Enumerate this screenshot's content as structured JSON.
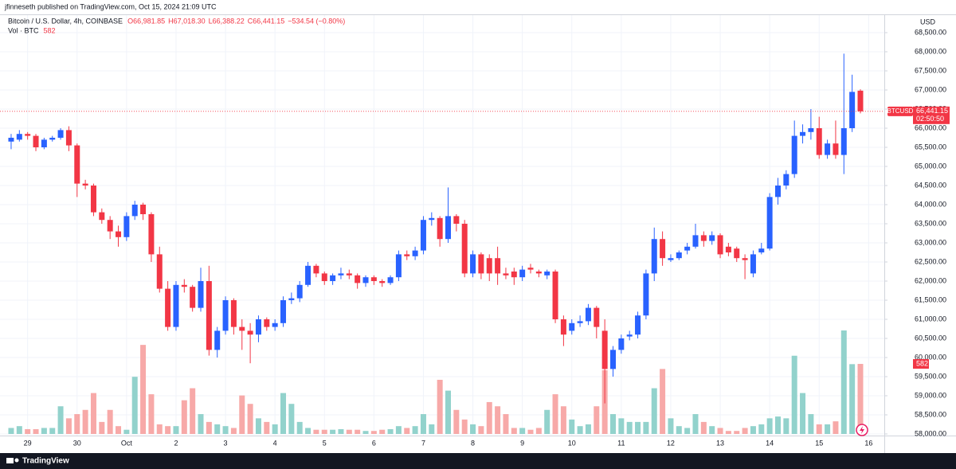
{
  "header": {
    "publisher": "jfinneseth published on TradingView.com, Oct 15, 2024 21:09 UTC"
  },
  "legend": {
    "symbol": "Bitcoin / U.S. Dollar, 4h, COINBASE",
    "open": "O66,981.85",
    "high": "H67,018.30",
    "low": "L66,388.22",
    "close": "C66,441.15",
    "change": "−534.54 (−0.80%)",
    "volume_name": "Vol · BTC",
    "volume": "582"
  },
  "footer": {
    "brand": "TradingView"
  },
  "chart_data": {
    "type": "candlestick",
    "currency": "USD",
    "symbol": "BTCUSD",
    "last_price": {
      "value": 66441.15,
      "label": "66,441.15"
    },
    "countdown": "02:50:50",
    "last_volume_label": "582",
    "up_color": "#2962ff",
    "down_color": "#f23645",
    "volume_up_color": "#92d2cc",
    "volume_down_color": "#f7a9a8",
    "ylim": [
      58000,
      68500
    ],
    "yticks": [
      {
        "value": 58000,
        "label": "58,000.00"
      },
      {
        "value": 58500,
        "label": "58,500.00"
      },
      {
        "value": 59000,
        "label": "59,000.00"
      },
      {
        "value": 59500,
        "label": "59,500.00"
      },
      {
        "value": 60000,
        "label": "60,000.00"
      },
      {
        "value": 60500,
        "label": "60,500.00"
      },
      {
        "value": 61000,
        "label": "61,000.00"
      },
      {
        "value": 61500,
        "label": "61,500.00"
      },
      {
        "value": 62000,
        "label": "62,000.00"
      },
      {
        "value": 62500,
        "label": "62,500.00"
      },
      {
        "value": 63000,
        "label": "63,000.00"
      },
      {
        "value": 63500,
        "label": "63,500.00"
      },
      {
        "value": 64000,
        "label": "64,000.00"
      },
      {
        "value": 64500,
        "label": "64,500.00"
      },
      {
        "value": 65000,
        "label": "65,000.00"
      },
      {
        "value": 65500,
        "label": "65,500.00"
      },
      {
        "value": 66000,
        "label": "66,000.00"
      },
      {
        "value": 66500,
        "label": "66,500.00"
      },
      {
        "value": 67000,
        "label": "67,000.00"
      },
      {
        "value": 67500,
        "label": "67,500.00"
      },
      {
        "value": 68000,
        "label": "68,000.00"
      },
      {
        "value": 68500,
        "label": "68,500.00"
      }
    ],
    "xlim": [
      -1.35,
      105.9
    ],
    "xticks": [
      {
        "value": 2,
        "label": "29"
      },
      {
        "value": 8,
        "label": "30"
      },
      {
        "value": 14,
        "label": "Oct"
      },
      {
        "value": 20,
        "label": "2"
      },
      {
        "value": 26,
        "label": "3"
      },
      {
        "value": 32,
        "label": "4"
      },
      {
        "value": 38,
        "label": "5"
      },
      {
        "value": 44,
        "label": "6"
      },
      {
        "value": 50,
        "label": "7"
      },
      {
        "value": 56,
        "label": "8"
      },
      {
        "value": 62,
        "label": "9"
      },
      {
        "value": 68,
        "label": "10"
      },
      {
        "value": 74,
        "label": "11"
      },
      {
        "value": 80,
        "label": "12"
      },
      {
        "value": 86,
        "label": "13"
      },
      {
        "value": 92,
        "label": "14"
      },
      {
        "value": 98,
        "label": "15"
      },
      {
        "value": 104,
        "label": "16"
      }
    ],
    "grid": true,
    "open": [
      65650,
      65700,
      65850,
      65800,
      65500,
      65700,
      65750,
      65950,
      65550,
      64550,
      64500,
      63800,
      63600,
      63300,
      63150,
      63700,
      64000,
      63750,
      62700,
      61800,
      60800,
      61900,
      61850,
      61300,
      62000,
      60200,
      60700,
      61500,
      60800,
      60700,
      60600,
      61000,
      60800,
      60900,
      61500,
      61550,
      61900,
      62400,
      62200,
      62000,
      62150,
      62200,
      62150,
      61950,
      62100,
      62000,
      61950,
      62100,
      62700,
      62650,
      62800,
      63600,
      63650,
      63100,
      63700,
      63500,
      62200,
      62700,
      62600,
      62600,
      62200,
      62250,
      62100,
      62350,
      62250,
      62150,
      62250,
      61000,
      60700,
      60900,
      60950,
      61300,
      60700,
      59700,
      60200,
      60550,
      60600,
      61100,
      62200,
      63100,
      62550,
      62600,
      62800,
      62900,
      63200,
      63050,
      63200,
      62900,
      62850,
      62600,
      62200,
      62750,
      62850,
      64200,
      64500,
      64800,
      65800,
      65900,
      66000,
      65300,
      65600,
      65300,
      66000,
      66981.85
    ],
    "high": [
      65850,
      65950,
      65900,
      65850,
      65750,
      65800,
      66000,
      66050,
      65600,
      64650,
      64550,
      63900,
      63700,
      63450,
      63800,
      64100,
      64050,
      63800,
      62900,
      62000,
      62000,
      62050,
      61900,
      62350,
      62400,
      60800,
      61600,
      61550,
      61000,
      60900,
      61100,
      61050,
      61000,
      61600,
      61700,
      62000,
      62500,
      62450,
      62250,
      62200,
      62350,
      62300,
      62200,
      62150,
      62150,
      62050,
      62150,
      62800,
      62800,
      62900,
      63700,
      63800,
      63700,
      64450,
      63750,
      63600,
      62800,
      62750,
      62700,
      62900,
      62350,
      62350,
      62400,
      62450,
      62300,
      62300,
      62300,
      61100,
      61000,
      61100,
      61400,
      61350,
      61000,
      60300,
      60600,
      60700,
      61200,
      62300,
      63400,
      63300,
      62700,
      62800,
      63000,
      63500,
      63300,
      63300,
      63250,
      63000,
      62900,
      62700,
      62800,
      63000,
      64300,
      64700,
      64900,
      66200,
      66100,
      66500,
      66300,
      65700,
      66200,
      67950,
      67400,
      67018.3
    ],
    "low": [
      65450,
      65650,
      65700,
      65400,
      65450,
      65650,
      65700,
      65400,
      64200,
      64400,
      63700,
      63500,
      63100,
      62900,
      63050,
      63600,
      63600,
      62500,
      61700,
      60700,
      60700,
      61700,
      61200,
      61200,
      60050,
      60000,
      60600,
      60600,
      60200,
      59850,
      60400,
      60700,
      60700,
      60800,
      61400,
      61450,
      61850,
      62100,
      61900,
      61900,
      62050,
      62050,
      61800,
      61850,
      61900,
      61850,
      61900,
      62000,
      62550,
      62550,
      62700,
      63450,
      62900,
      63000,
      63300,
      62100,
      62100,
      62050,
      62000,
      61900,
      62050,
      61900,
      62000,
      62200,
      62100,
      62050,
      60900,
      60300,
      60600,
      60800,
      60850,
      60500,
      58800,
      59500,
      60100,
      60450,
      60500,
      61000,
      62000,
      62400,
      62500,
      62550,
      62700,
      62850,
      62900,
      62950,
      62600,
      62650,
      62500,
      62050,
      62100,
      62700,
      62800,
      64000,
      64400,
      64700,
      65600,
      65700,
      65200,
      65200,
      65200,
      64800,
      65900,
      66388.22
    ],
    "close": [
      65750,
      65850,
      65800,
      65500,
      65700,
      65750,
      65950,
      65550,
      64550,
      64500,
      63800,
      63600,
      63300,
      63150,
      63700,
      64000,
      63750,
      62700,
      61800,
      60800,
      61900,
      61850,
      61300,
      62000,
      60200,
      60700,
      61500,
      60800,
      60700,
      60600,
      61000,
      60800,
      60900,
      61500,
      61550,
      61900,
      62400,
      62200,
      62000,
      62150,
      62200,
      62150,
      61950,
      62100,
      62000,
      61950,
      62100,
      62700,
      62650,
      62800,
      63600,
      63650,
      63100,
      63700,
      63500,
      62200,
      62700,
      62200,
      62200,
      62200,
      62150,
      62100,
      62300,
      62300,
      62200,
      62250,
      61000,
      60600,
      60900,
      60950,
      61300,
      60800,
      59700,
      60200,
      60500,
      60600,
      61100,
      62200,
      63100,
      62600,
      62600,
      62750,
      62900,
      63200,
      63050,
      63200,
      62700,
      62750,
      62600,
      62550,
      62700,
      62850,
      64200,
      64500,
      64800,
      65800,
      65900,
      66000,
      65300,
      65600,
      65300,
      66000,
      66950,
      66441.15
    ],
    "volume": [
      50,
      65,
      40,
      40,
      50,
      50,
      230,
      130,
      165,
      200,
      340,
      100,
      200,
      65,
      35,
      475,
      740,
      330,
      80,
      65,
      65,
      280,
      380,
      165,
      100,
      80,
      65,
      50,
      320,
      250,
      130,
      100,
      80,
      340,
      250,
      100,
      50,
      35,
      35,
      35,
      40,
      35,
      35,
      25,
      25,
      35,
      40,
      65,
      50,
      65,
      165,
      80,
      450,
      360,
      200,
      120,
      80,
      65,
      265,
      230,
      165,
      50,
      50,
      35,
      50,
      200,
      330,
      230,
      120,
      65,
      80,
      230,
      530,
      165,
      130,
      100,
      100,
      100,
      380,
      540,
      130,
      65,
      50,
      165,
      100,
      65,
      50,
      25,
      25,
      50,
      65,
      80,
      130,
      145,
      130,
      650,
      340,
      165,
      80,
      80,
      105,
      860,
      580,
      582
    ]
  }
}
